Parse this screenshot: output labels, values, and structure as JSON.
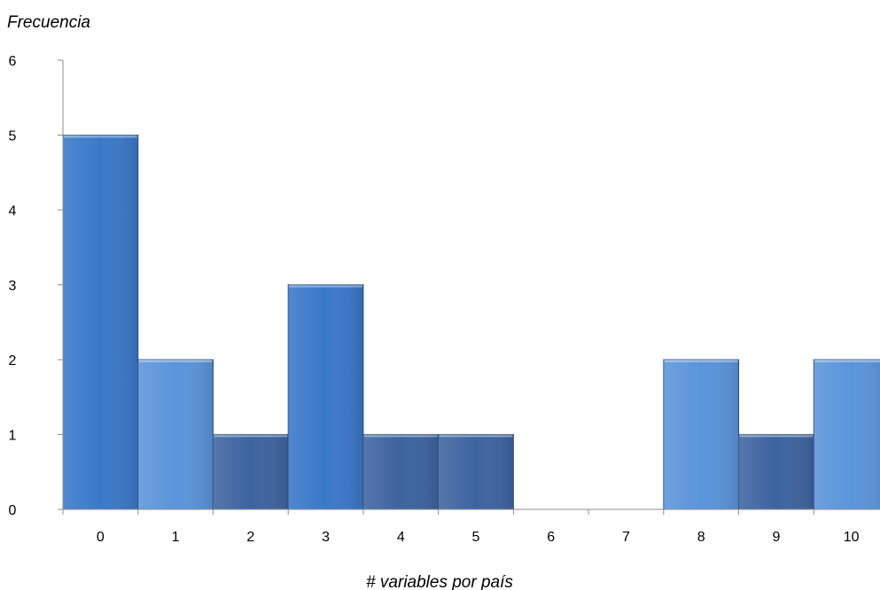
{
  "chart_data": {
    "type": "bar",
    "title": "",
    "xlabel": "# variables por país",
    "ylabel": "Frecuencia",
    "categories": [
      "0",
      "1",
      "2",
      "3",
      "4",
      "5",
      "6",
      "7",
      "8",
      "9",
      "10"
    ],
    "values": [
      5,
      2,
      1,
      3,
      1,
      1,
      0,
      0,
      2,
      1,
      2
    ],
    "bar_colors": [
      "#3a78c9",
      "#5a94da",
      "#3d64a0",
      "#3a78c9",
      "#3d64a0",
      "#3d64a0",
      "#3a78c9",
      "#3a78c9",
      "#5a94da",
      "#3d64a0",
      "#5a94da"
    ],
    "ylim": [
      0,
      6
    ],
    "yticks": [
      "0",
      "1",
      "2",
      "3",
      "4",
      "5",
      "6"
    ],
    "grid": false,
    "legend": "none"
  }
}
